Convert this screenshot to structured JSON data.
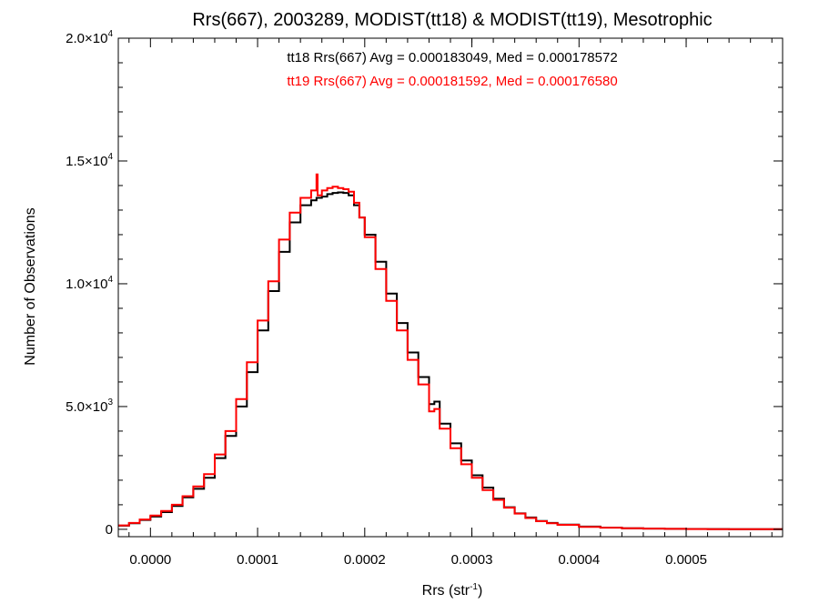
{
  "chart_data": {
    "type": "line",
    "title": "Rrs(667), 2003289, MODIST(tt18) & MODIST(tt19), Mesotrophic",
    "xlabel_base": "Rrs (str",
    "xlabel_sup": "-1",
    "xlabel_tail": ")",
    "ylabel": "Number of Observations",
    "xlim": [
      -3e-05,
      0.00059
    ],
    "ylim": [
      -300,
      20000
    ],
    "xticks": [
      0.0,
      0.0001,
      0.0002,
      0.0003,
      0.0004,
      0.0005
    ],
    "xtick_labels": [
      "0.0000",
      "0.0001",
      "0.0002",
      "0.0003",
      "0.0004",
      "0.0005"
    ],
    "yticks": [
      {
        "value": 0,
        "mant": "0",
        "exp": ""
      },
      {
        "value": 5000,
        "mant": "5.0×10",
        "exp": "3"
      },
      {
        "value": 10000,
        "mant": "1.0×10",
        "exp": "4"
      },
      {
        "value": 15000,
        "mant": "1.5×10",
        "exp": "4"
      },
      {
        "value": 20000,
        "mant": "2.0×10",
        "exp": "4"
      }
    ],
    "annotations": [
      {
        "text": "tt18 Rrs(667) Avg = 0.000183049, Med = 0.000178572",
        "color": "#000000"
      },
      {
        "text": "tt19 Rrs(667) Avg = 0.000181592, Med = 0.000176580",
        "color": "#ff0000"
      }
    ],
    "series": [
      {
        "color": "#000000",
        "x": [
          -3e-05,
          -2e-05,
          -1e-05,
          0.0,
          1e-05,
          2e-05,
          3e-05,
          4e-05,
          5e-05,
          6e-05,
          7e-05,
          8e-05,
          9e-05,
          0.0001,
          0.00011,
          0.00012,
          0.00013,
          0.00014,
          0.00015,
          0.000155,
          0.00016,
          0.000165,
          0.00017,
          0.000175,
          0.00018,
          0.000185,
          0.00019,
          0.000195,
          0.0002,
          0.00021,
          0.00022,
          0.00023,
          0.00024,
          0.00025,
          0.00026,
          0.000265,
          0.00027,
          0.00028,
          0.00029,
          0.0003,
          0.00031,
          0.00032,
          0.00033,
          0.00034,
          0.00035,
          0.00036,
          0.00037,
          0.00038,
          0.0004,
          0.00042,
          0.00044,
          0.00046,
          0.00048,
          0.0005,
          0.00052,
          0.00054,
          0.00056,
          0.00059
        ],
        "y": [
          150,
          250,
          380,
          520,
          700,
          950,
          1300,
          1650,
          2100,
          2900,
          3800,
          5000,
          6400,
          8100,
          9700,
          11300,
          12500,
          13200,
          13400,
          13500,
          13550,
          13650,
          13700,
          13720,
          13700,
          13600,
          13200,
          12700,
          12000,
          10900,
          9600,
          8400,
          7200,
          6200,
          5100,
          5200,
          4300,
          3500,
          2800,
          2200,
          1700,
          1250,
          900,
          650,
          480,
          340,
          260,
          190,
          110,
          70,
          45,
          30,
          20,
          14,
          10,
          6,
          4,
          2
        ]
      },
      {
        "color": "#ff0000",
        "x": [
          -3e-05,
          -2e-05,
          -1e-05,
          0.0,
          1e-05,
          2e-05,
          3e-05,
          4e-05,
          5e-05,
          6e-05,
          7e-05,
          8e-05,
          9e-05,
          0.0001,
          0.00011,
          0.00012,
          0.00013,
          0.00014,
          0.00015,
          0.000155,
          0.000156,
          0.00016,
          0.000165,
          0.00017,
          0.000175,
          0.00018,
          0.000185,
          0.00019,
          0.000195,
          0.0002,
          0.00021,
          0.00022,
          0.00023,
          0.00024,
          0.00025,
          0.00026,
          0.000265,
          0.00027,
          0.00028,
          0.00029,
          0.0003,
          0.00031,
          0.00032,
          0.00033,
          0.00034,
          0.00035,
          0.00036,
          0.00037,
          0.00038,
          0.0004,
          0.00042,
          0.00044,
          0.00046,
          0.00048,
          0.0005,
          0.00052,
          0.00054,
          0.00056,
          0.00059
        ],
        "y": [
          160,
          260,
          400,
          560,
          750,
          1000,
          1350,
          1750,
          2250,
          3050,
          4000,
          5300,
          6800,
          8500,
          10100,
          11800,
          12900,
          13500,
          13800,
          14450,
          13600,
          13800,
          13900,
          13950,
          13900,
          13850,
          13750,
          13300,
          12700,
          11900,
          10600,
          9300,
          8100,
          6900,
          5900,
          4800,
          4900,
          4100,
          3300,
          2650,
          2100,
          1600,
          1200,
          880,
          640,
          460,
          330,
          250,
          180,
          100,
          65,
          40,
          28,
          18,
          12,
          8,
          5,
          3,
          2
        ]
      }
    ]
  }
}
